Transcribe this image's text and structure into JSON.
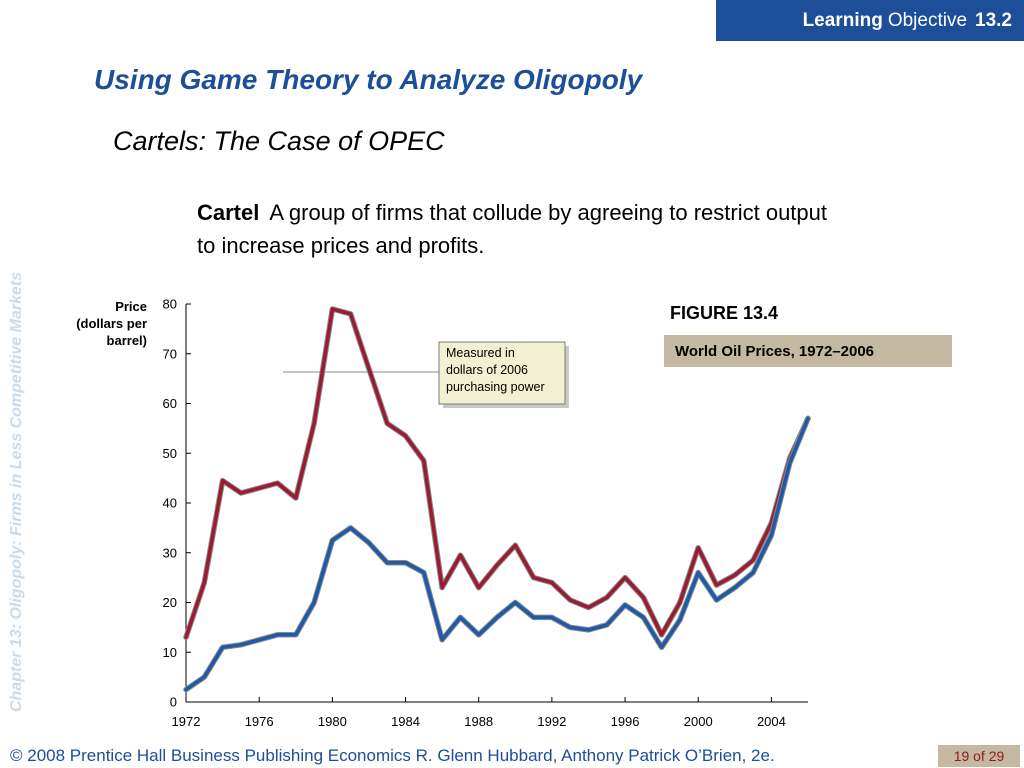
{
  "header": {
    "learning": "Learning",
    "objective": "Objective",
    "number": "13.2"
  },
  "sidebar": {
    "chapter": "Chapter 13:  Oligopoly: Firms in Less Competitive Markets"
  },
  "slide": {
    "title": "Using Game Theory to Analyze Oligopoly",
    "subtitle": "Cartels: The Case of OPEC",
    "definition_term": "Cartel",
    "definition_text": "A group of firms that collude by agreeing to restrict output to increase prices and profits."
  },
  "figure": {
    "number": "FIGURE 13.4",
    "caption": "World Oil Prices, 1972–2006"
  },
  "footer": {
    "copyright": "© 2008 Prentice Hall Business Publishing   Economics  R. Glenn Hubbard, Anthony Patrick O’Brien, 2e.",
    "page": "19 of 29"
  },
  "chart_data": {
    "type": "line",
    "title": "",
    "ylabel": "Price (dollars per barrel)",
    "xlabel": "",
    "ylim": [
      0,
      80
    ],
    "yticks": [
      0,
      10,
      20,
      30,
      40,
      50,
      60,
      70,
      80
    ],
    "xticks": [
      1972,
      1976,
      1980,
      1984,
      1988,
      1992,
      1996,
      2000,
      2004
    ],
    "xlim": [
      1972,
      2006
    ],
    "annotation": "Measured in dollars of 2006 purchasing power",
    "x": [
      1972,
      1973,
      1974,
      1975,
      1976,
      1977,
      1978,
      1979,
      1980,
      1981,
      1982,
      1983,
      1984,
      1985,
      1986,
      1987,
      1988,
      1989,
      1990,
      1991,
      1992,
      1993,
      1994,
      1995,
      1996,
      1997,
      1998,
      1999,
      2000,
      2001,
      2002,
      2003,
      2004,
      2005,
      2006
    ],
    "series": [
      {
        "color": "#9b1b30",
        "values": [
          13,
          24,
          44.5,
          42,
          43,
          44,
          41,
          56,
          79,
          78,
          67,
          56,
          53.5,
          48.5,
          23,
          29.5,
          23,
          27.5,
          31.5,
          25,
          24,
          20.5,
          19,
          21,
          25,
          21,
          13.5,
          20,
          31,
          23.5,
          25.5,
          28.5,
          36,
          49,
          57
        ]
      },
      {
        "color": "#1e5aa8",
        "values": [
          2.5,
          5,
          11,
          11.5,
          12.5,
          13.5,
          13.5,
          20,
          32.5,
          35,
          32,
          28,
          28,
          26,
          12.5,
          17,
          13.5,
          17,
          20,
          17,
          17,
          15,
          14.5,
          15.5,
          19.5,
          17,
          11,
          16.5,
          26,
          20.5,
          23,
          26,
          33.5,
          48,
          57
        ]
      }
    ]
  }
}
